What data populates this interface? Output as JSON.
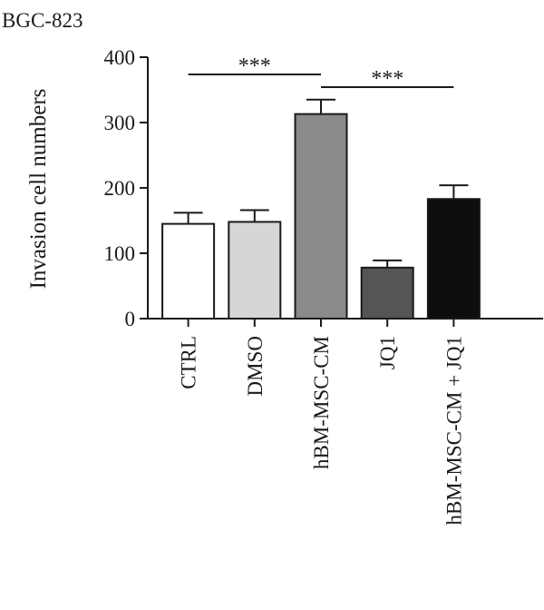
{
  "chart_data": {
    "type": "bar",
    "title": "BGC-823",
    "xlabel": "",
    "ylabel": "Invasion cell numbers",
    "ylim": [
      0,
      400
    ],
    "yticks": [
      0,
      100,
      200,
      300,
      400
    ],
    "categories": [
      "CTRL",
      "DMSO",
      "hBM-MSC-CM",
      "JQ1",
      "hBM-MSC-CM + JQ1"
    ],
    "values": [
      145,
      148,
      313,
      78,
      183
    ],
    "errors": [
      17,
      18,
      22,
      11,
      21
    ],
    "bar_colors": [
      "#ffffff",
      "#d6d6d8",
      "#8a8a8c",
      "#555557",
      "#0d0d0d"
    ],
    "significance": [
      {
        "from": 0,
        "to": 2,
        "label": "***"
      },
      {
        "from": 2,
        "to": 4,
        "label": "***"
      }
    ],
    "grid": false,
    "legend": "none"
  }
}
